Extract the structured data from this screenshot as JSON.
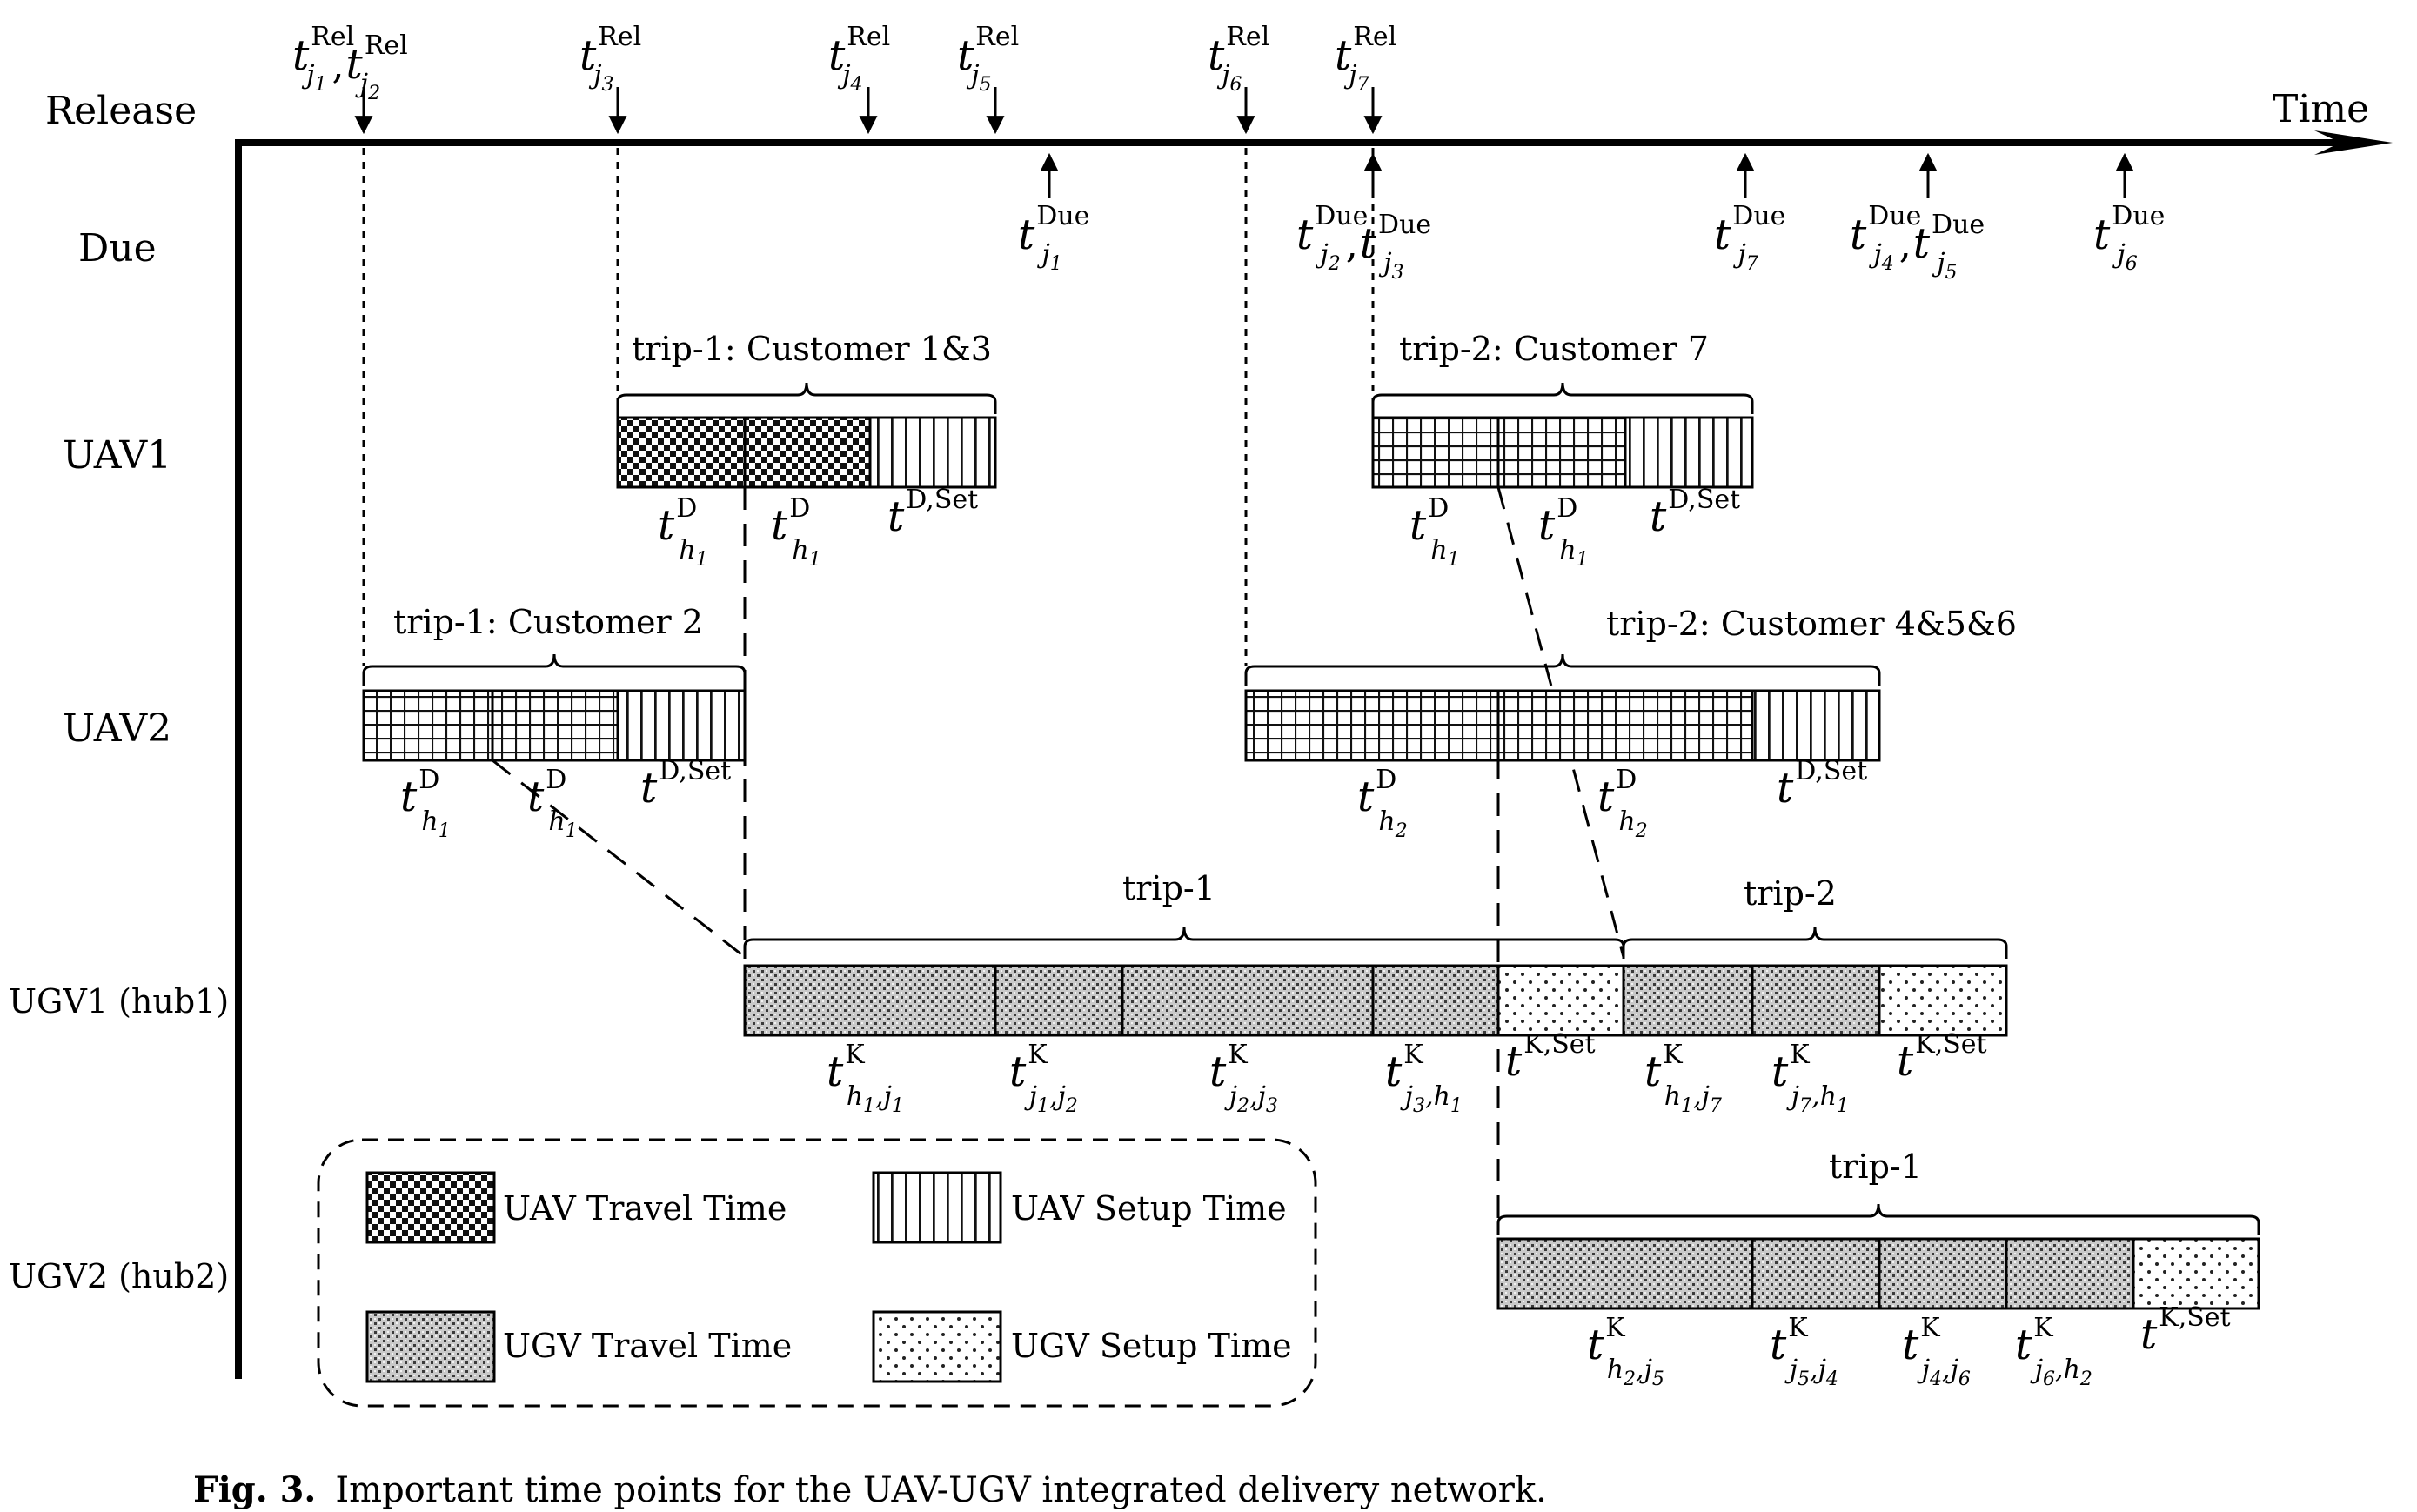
{
  "axis": {
    "x_label": "Time"
  },
  "row_labels": {
    "release": "Release",
    "due": "Due",
    "uav1": "UAV1",
    "uav2": "UAV2",
    "ugv1": "UGV1 (hub1)",
    "ugv2": "UGV2 (hub2)"
  },
  "release_markers": [
    {
      "id": "rel-j1-j2",
      "terms": [
        {
          "sub": "j",
          "sub2": "1"
        },
        {
          "sub": "j",
          "sub2": "2"
        }
      ],
      "sup": "Rel"
    },
    {
      "id": "rel-j3",
      "terms": [
        {
          "sub": "j",
          "sub2": "3"
        }
      ],
      "sup": "Rel"
    },
    {
      "id": "rel-j4",
      "terms": [
        {
          "sub": "j",
          "sub2": "4"
        }
      ],
      "sup": "Rel"
    },
    {
      "id": "rel-j5",
      "terms": [
        {
          "sub": "j",
          "sub2": "5"
        }
      ],
      "sup": "Rel"
    },
    {
      "id": "rel-j6",
      "terms": [
        {
          "sub": "j",
          "sub2": "6"
        }
      ],
      "sup": "Rel"
    },
    {
      "id": "rel-j7",
      "terms": [
        {
          "sub": "j",
          "sub2": "7"
        }
      ],
      "sup": "Rel"
    }
  ],
  "due_markers": [
    {
      "id": "due-j1",
      "terms": [
        {
          "sub": "j",
          "sub2": "1"
        }
      ],
      "sup": "Due"
    },
    {
      "id": "due-j2-j3",
      "terms": [
        {
          "sub": "j",
          "sub2": "2"
        },
        {
          "sub": "j",
          "sub2": "3"
        }
      ],
      "sup": "Due"
    },
    {
      "id": "due-j7",
      "terms": [
        {
          "sub": "j",
          "sub2": "7"
        }
      ],
      "sup": "Due"
    },
    {
      "id": "due-j4-j5",
      "terms": [
        {
          "sub": "j",
          "sub2": "4"
        },
        {
          "sub": "j",
          "sub2": "5"
        }
      ],
      "sup": "Due"
    },
    {
      "id": "due-j6",
      "terms": [
        {
          "sub": "j",
          "sub2": "6"
        }
      ],
      "sup": "Due"
    }
  ],
  "trips": {
    "uav1_trip1": "trip-1: Customer 1&3",
    "uav1_trip2": "trip-2: Customer 7",
    "uav2_trip1": "trip-1: Customer 2",
    "uav2_trip2": "trip-2: Customer 4&5&6",
    "ugv1_trip1": "trip-1",
    "ugv1_trip2": "trip-2",
    "ugv2_trip1": "trip-1"
  },
  "segments": {
    "uav1_trip1": [
      {
        "kind": "uav-travel",
        "label": {
          "main": "t",
          "sup": "D",
          "sub": "h",
          "sub2": "1"
        }
      },
      {
        "kind": "uav-travel",
        "label": {
          "main": "t",
          "sup": "D",
          "sub": "h",
          "sub2": "1"
        }
      },
      {
        "kind": "uav-setup",
        "label": {
          "main": "t",
          "sup": "D,Set",
          "sup_italic": "Set",
          "sub": "",
          "sub2": ""
        }
      }
    ],
    "uav1_trip2": [
      {
        "kind": "uav-travel-grid",
        "label": {
          "main": "t",
          "sup": "D",
          "sub": "h",
          "sub2": "1"
        }
      },
      {
        "kind": "uav-travel-grid",
        "label": {
          "main": "t",
          "sup": "D",
          "sub": "h",
          "sub2": "1"
        }
      },
      {
        "kind": "uav-setup",
        "label": {
          "main": "t",
          "sup": "D,Set",
          "sup_italic": "Set",
          "sub": "",
          "sub2": ""
        }
      }
    ],
    "uav2_trip1": [
      {
        "kind": "uav-travel-grid",
        "label": {
          "main": "t",
          "sup": "D",
          "sub": "h",
          "sub2": "1"
        }
      },
      {
        "kind": "uav-travel-grid",
        "label": {
          "main": "t",
          "sup": "D",
          "sub": "h",
          "sub2": "1"
        }
      },
      {
        "kind": "uav-setup",
        "label": {
          "main": "t",
          "sup": "D,Set",
          "sub": "",
          "sub2": ""
        }
      }
    ],
    "uav2_trip2": [
      {
        "kind": "uav-travel-grid",
        "label": {
          "main": "t",
          "sup": "D",
          "sub": "h",
          "sub2": "2"
        }
      },
      {
        "kind": "uav-travel-grid",
        "label": {
          "main": "t",
          "sup": "D",
          "sub": "h",
          "sub2": "2"
        }
      },
      {
        "kind": "uav-setup",
        "label": {
          "main": "t",
          "sup": "D,Set",
          "sub": "",
          "sub2": ""
        }
      }
    ],
    "ugv1": [
      {
        "kind": "ugv-travel",
        "label": {
          "main": "t",
          "sup": "K",
          "sub": "h",
          "sub2": "1",
          "sub3": ",j",
          "sub4": "1"
        }
      },
      {
        "kind": "ugv-travel",
        "label": {
          "main": "t",
          "sup": "K",
          "sub": "j",
          "sub2": "1",
          "sub3": ",j",
          "sub4": "2"
        }
      },
      {
        "kind": "ugv-travel",
        "label": {
          "main": "t",
          "sup": "K",
          "sub": "j",
          "sub2": "2",
          "sub3": ",j",
          "sub4": "3"
        }
      },
      {
        "kind": "ugv-travel",
        "label": {
          "main": "t",
          "sup": "K",
          "sub": "j",
          "sub2": "3",
          "sub3": ",h",
          "sub4": "1"
        }
      },
      {
        "kind": "ugv-setup",
        "label": {
          "main": "t",
          "sup": "K,Set",
          "sub": "",
          "sub2": ""
        }
      },
      {
        "kind": "ugv-travel",
        "label": {
          "main": "t",
          "sup": "K",
          "sub": "h",
          "sub2": "1",
          "sub3": ",j",
          "sub4": "7"
        }
      },
      {
        "kind": "ugv-travel",
        "label": {
          "main": "t",
          "sup": "K",
          "sub": "j",
          "sub2": "7",
          "sub3": ",h",
          "sub4": "1"
        }
      },
      {
        "kind": "ugv-setup",
        "label": {
          "main": "t",
          "sup": "K,Set",
          "sub": "",
          "sub2": ""
        }
      }
    ],
    "ugv2": [
      {
        "kind": "ugv-travel",
        "label": {
          "main": "t",
          "sup": "K",
          "sub": "h",
          "sub2": "2",
          "sub3": ",j",
          "sub4": "5"
        }
      },
      {
        "kind": "ugv-travel",
        "label": {
          "main": "t",
          "sup": "K",
          "sub": "j",
          "sub2": "5",
          "sub3": ",j",
          "sub4": "4"
        }
      },
      {
        "kind": "ugv-travel",
        "label": {
          "main": "t",
          "sup": "K",
          "sub": "j",
          "sub2": "4",
          "sub3": ",j",
          "sub4": "6"
        }
      },
      {
        "kind": "ugv-travel",
        "label": {
          "main": "t",
          "sup": "K",
          "sub": "j",
          "sub2": "6",
          "sub3": ",h",
          "sub4": "2"
        }
      },
      {
        "kind": "ugv-setup",
        "label": {
          "main": "t",
          "sup": "K,Set",
          "sub": "",
          "sub2": ""
        }
      }
    ]
  },
  "legend": {
    "uav_travel": "UAV Travel Time",
    "uav_setup": "UAV Setup Time",
    "ugv_travel": "UGV Travel Time",
    "ugv_setup": "UGV Setup Time"
  },
  "caption": {
    "label": "Fig. 3.",
    "text": "Important time points for the UAV-UGV integrated delivery network."
  }
}
